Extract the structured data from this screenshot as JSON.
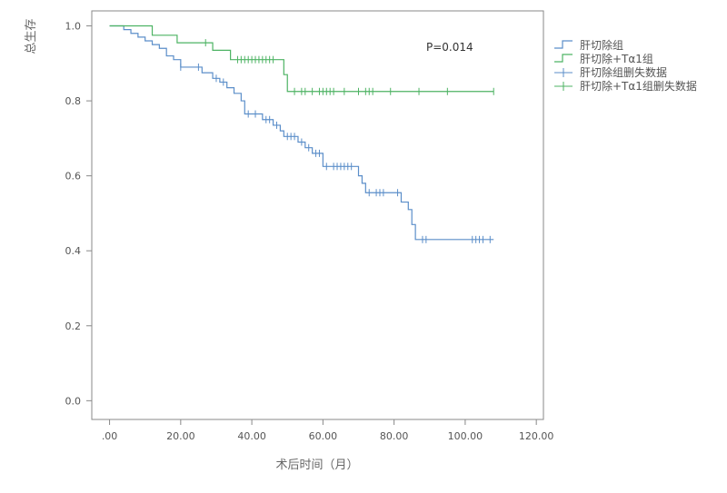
{
  "chart_data": {
    "type": "line",
    "title": "",
    "xlabel": "术后时间（月）",
    "ylabel": "总生存",
    "xlim": [
      -5,
      122
    ],
    "ylim": [
      -0.05,
      1.04
    ],
    "xticks": [
      0,
      20,
      40,
      60,
      80,
      100,
      120
    ],
    "xtick_labels": [
      ".00",
      "20.00",
      "40.00",
      "60.00",
      "80.00",
      "100.00",
      "120.00"
    ],
    "yticks": [
      0,
      0.2,
      0.4,
      0.6,
      0.8,
      1.0
    ],
    "ytick_labels": [
      "0.0",
      "0.2",
      "0.4",
      "0.6",
      "0.8",
      "1.0"
    ],
    "grid": false,
    "legend_position": "right",
    "annotation": "P=0.014",
    "series": [
      {
        "name": "肝切除组",
        "color": "#5b8ec9",
        "steps": [
          [
            0,
            1.0
          ],
          [
            4,
            0.99
          ],
          [
            6,
            0.98
          ],
          [
            8,
            0.97
          ],
          [
            10,
            0.96
          ],
          [
            12,
            0.95
          ],
          [
            14,
            0.94
          ],
          [
            16,
            0.92
          ],
          [
            18,
            0.91
          ],
          [
            20,
            0.89
          ],
          [
            26,
            0.875
          ],
          [
            29,
            0.86
          ],
          [
            31,
            0.85
          ],
          [
            33,
            0.835
          ],
          [
            35,
            0.82
          ],
          [
            37,
            0.8
          ],
          [
            38,
            0.765
          ],
          [
            43,
            0.75
          ],
          [
            46,
            0.735
          ],
          [
            48,
            0.72
          ],
          [
            49,
            0.705
          ],
          [
            53,
            0.69
          ],
          [
            55,
            0.675
          ],
          [
            57,
            0.66
          ],
          [
            60,
            0.625
          ],
          [
            70,
            0.6
          ],
          [
            71,
            0.58
          ],
          [
            72,
            0.555
          ],
          [
            82,
            0.53
          ],
          [
            84,
            0.51
          ],
          [
            85,
            0.47
          ],
          [
            86,
            0.43
          ],
          [
            108,
            0.43
          ]
        ],
        "censored": [
          [
            20,
            0.89
          ],
          [
            25,
            0.89
          ],
          [
            30,
            0.86
          ],
          [
            32,
            0.85
          ],
          [
            39,
            0.765
          ],
          [
            41,
            0.765
          ],
          [
            44,
            0.75
          ],
          [
            45,
            0.75
          ],
          [
            47,
            0.735
          ],
          [
            50,
            0.705
          ],
          [
            51,
            0.705
          ],
          [
            52,
            0.705
          ],
          [
            54,
            0.69
          ],
          [
            56,
            0.675
          ],
          [
            58,
            0.66
          ],
          [
            59,
            0.66
          ],
          [
            61,
            0.625
          ],
          [
            63,
            0.625
          ],
          [
            64,
            0.625
          ],
          [
            65,
            0.625
          ],
          [
            66,
            0.625
          ],
          [
            67,
            0.625
          ],
          [
            68,
            0.625
          ],
          [
            73,
            0.555
          ],
          [
            75,
            0.555
          ],
          [
            76,
            0.555
          ],
          [
            77,
            0.555
          ],
          [
            81,
            0.555
          ],
          [
            88,
            0.43
          ],
          [
            89,
            0.43
          ],
          [
            102,
            0.43
          ],
          [
            103,
            0.43
          ],
          [
            104,
            0.43
          ],
          [
            105,
            0.43
          ],
          [
            107,
            0.43
          ]
        ]
      },
      {
        "name": "肝切除+Tα1组",
        "color": "#4db363",
        "steps": [
          [
            0,
            1.0
          ],
          [
            12,
            0.975
          ],
          [
            19,
            0.955
          ],
          [
            29,
            0.935
          ],
          [
            34,
            0.91
          ],
          [
            49,
            0.87
          ],
          [
            50,
            0.825
          ],
          [
            108,
            0.825
          ]
        ],
        "censored": [
          [
            27,
            0.955
          ],
          [
            36,
            0.91
          ],
          [
            37,
            0.91
          ],
          [
            38,
            0.91
          ],
          [
            39,
            0.91
          ],
          [
            40,
            0.91
          ],
          [
            41,
            0.91
          ],
          [
            42,
            0.91
          ],
          [
            43,
            0.91
          ],
          [
            44,
            0.91
          ],
          [
            45,
            0.91
          ],
          [
            46,
            0.91
          ],
          [
            52,
            0.825
          ],
          [
            54,
            0.825
          ],
          [
            55,
            0.825
          ],
          [
            57,
            0.825
          ],
          [
            59,
            0.825
          ],
          [
            60,
            0.825
          ],
          [
            61,
            0.825
          ],
          [
            62,
            0.825
          ],
          [
            63,
            0.825
          ],
          [
            66,
            0.825
          ],
          [
            70,
            0.825
          ],
          [
            72,
            0.825
          ],
          [
            73,
            0.825
          ],
          [
            74,
            0.825
          ],
          [
            79,
            0.825
          ],
          [
            87,
            0.825
          ],
          [
            95,
            0.825
          ],
          [
            108,
            0.825
          ]
        ]
      }
    ],
    "legend": [
      {
        "label": "肝切除组",
        "symbol": "step",
        "color": "#5b8ec9"
      },
      {
        "label": "肝切除+Tα1组",
        "symbol": "step",
        "color": "#4db363"
      },
      {
        "label": "肝切除组删失数据",
        "symbol": "cross",
        "color": "#5b8ec9"
      },
      {
        "label": "肝切除+Tα1组删失数据",
        "symbol": "cross",
        "color": "#4db363"
      }
    ]
  }
}
